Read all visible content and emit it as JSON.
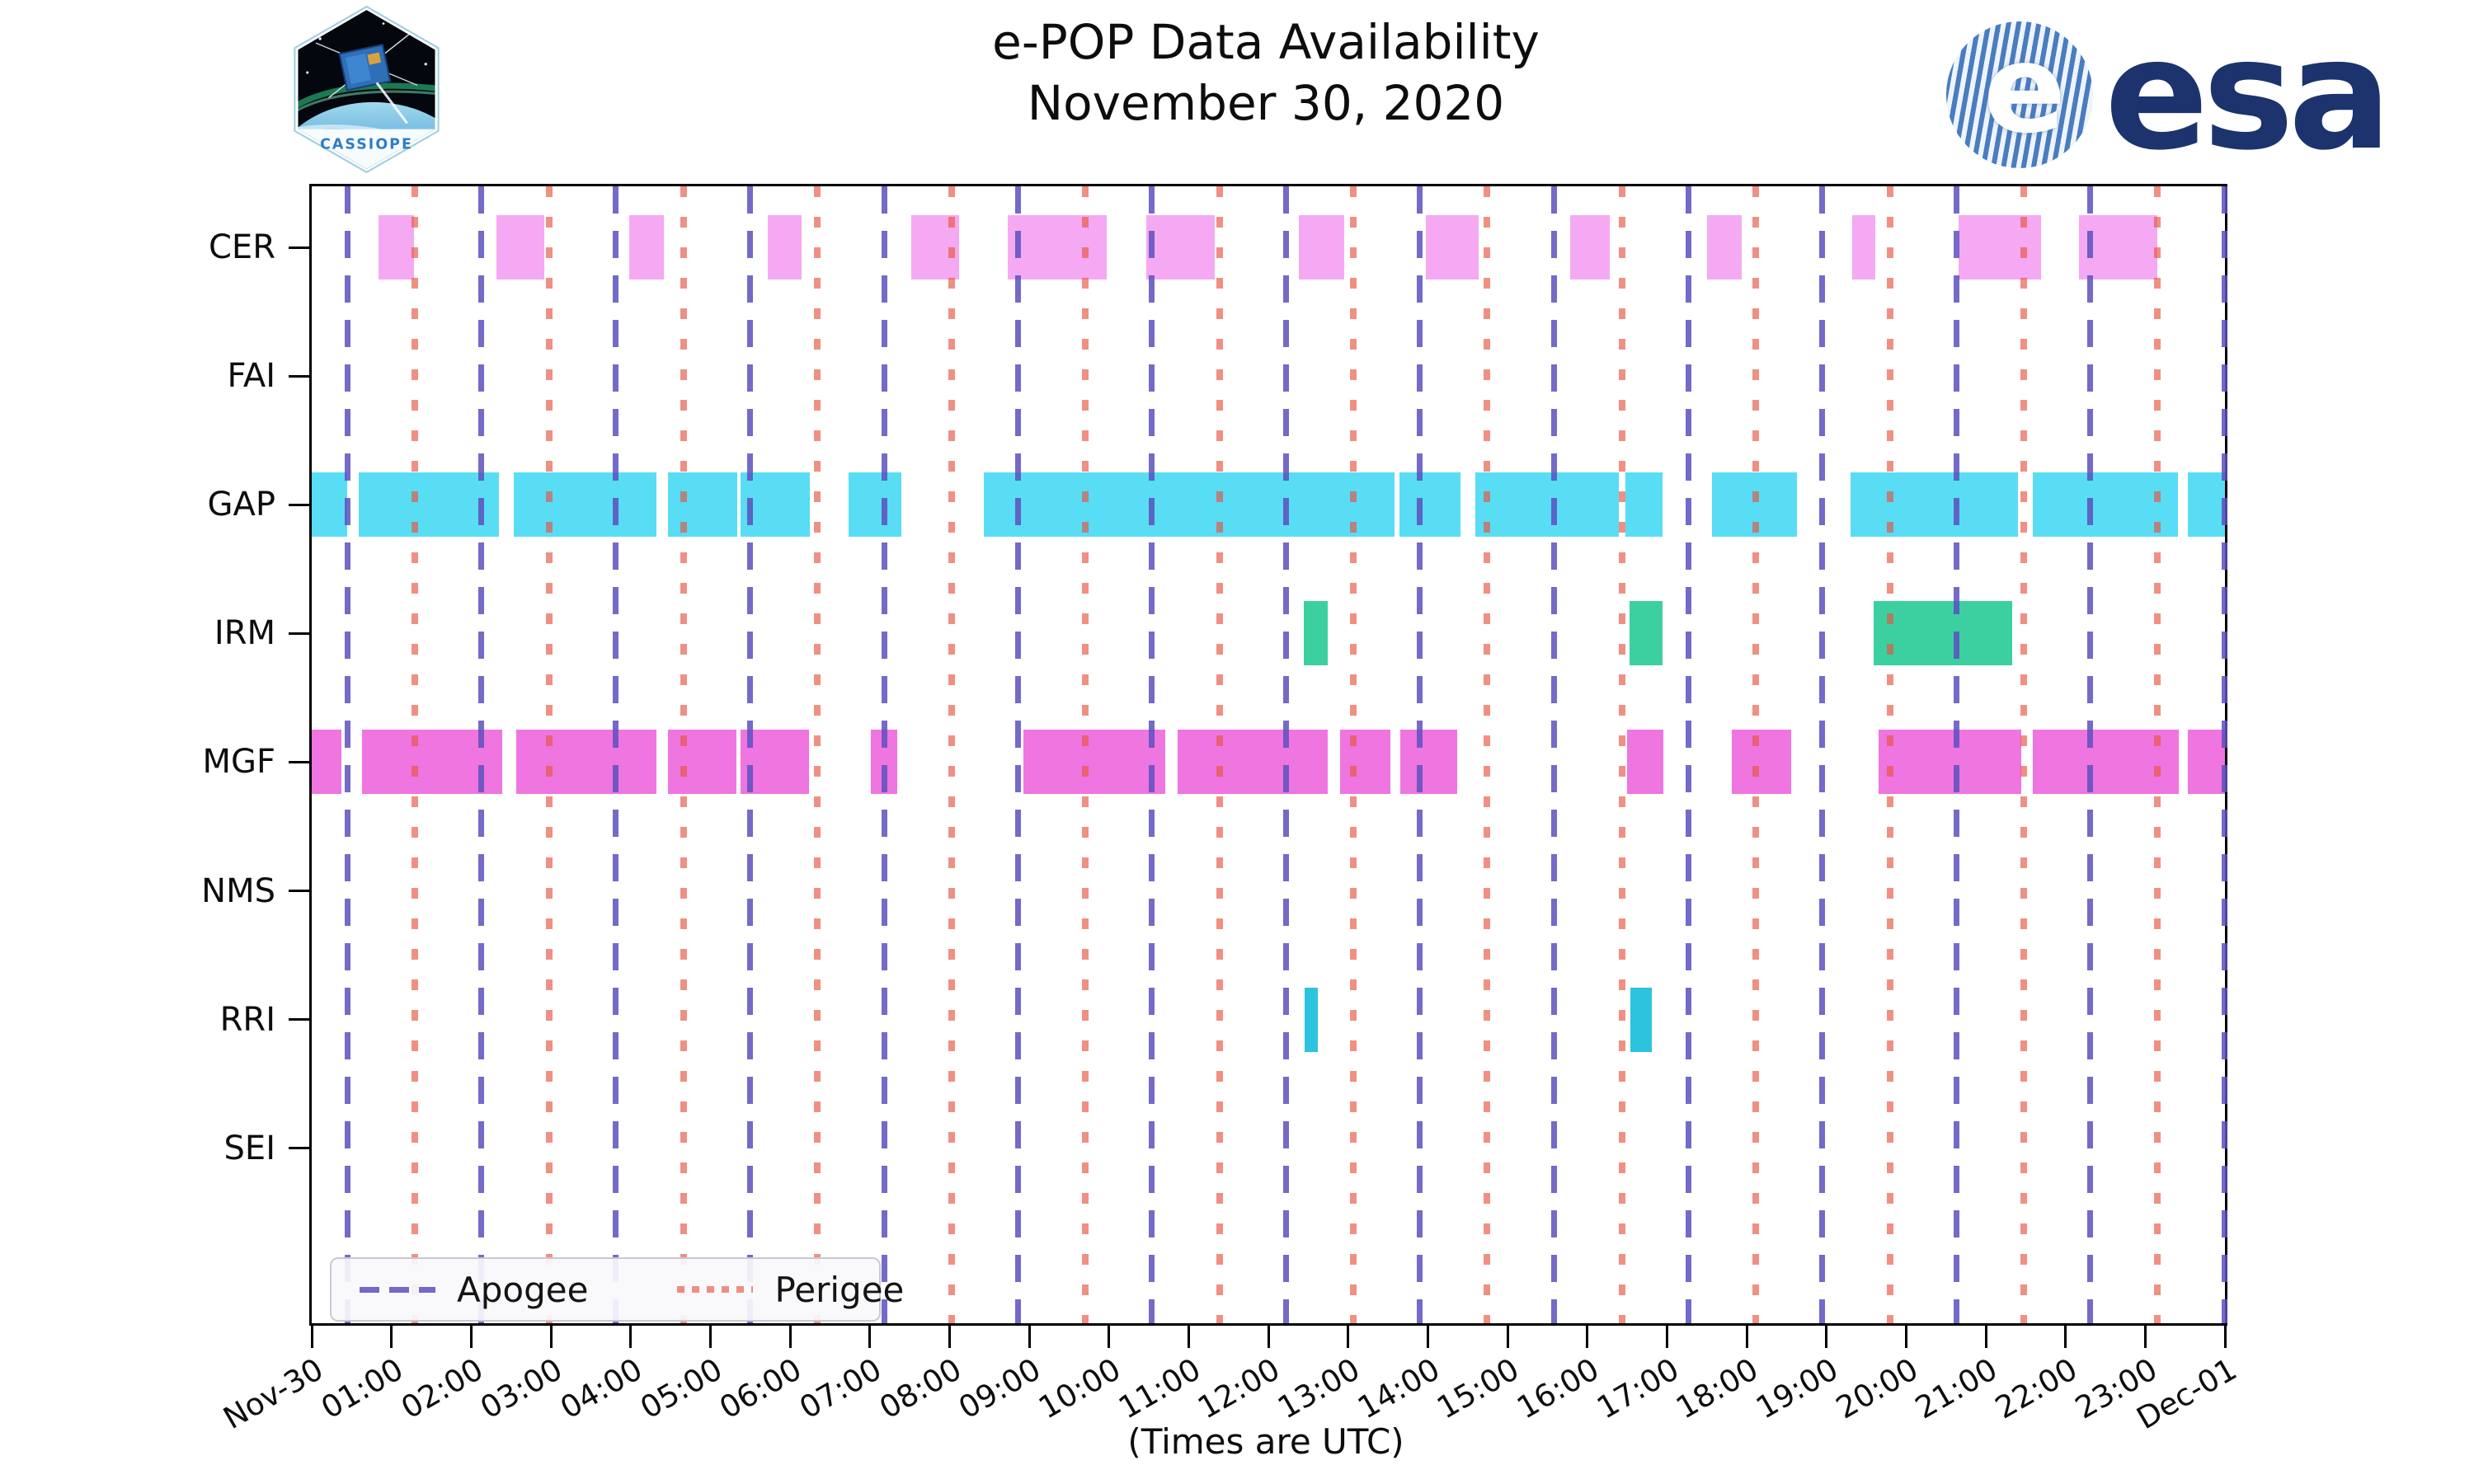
{
  "header": {
    "title": "e-POP Data Availability",
    "subtitle": "November 30, 2020",
    "esa_logo_text": "esa",
    "cassiope_logo_text": "CASSIOPE"
  },
  "chart_data": {
    "type": "bar",
    "subtype": "horizontal-broken-bar-availability-timeline",
    "title": "e-POP Data Availability",
    "subtitle": "November 30, 2020",
    "xlabel": "(Times are UTC)",
    "grid": false,
    "x_axis": {
      "unit": "hours UTC",
      "min": 0,
      "max": 24,
      "tick_hours": [
        0,
        1,
        2,
        3,
        4,
        5,
        6,
        7,
        8,
        9,
        10,
        11,
        12,
        13,
        14,
        15,
        16,
        17,
        18,
        19,
        20,
        21,
        22,
        23,
        24
      ],
      "tick_labels": [
        "Nov-30",
        "01:00",
        "02:00",
        "03:00",
        "04:00",
        "05:00",
        "06:00",
        "07:00",
        "08:00",
        "09:00",
        "10:00",
        "11:00",
        "12:00",
        "13:00",
        "14:00",
        "15:00",
        "16:00",
        "17:00",
        "18:00",
        "19:00",
        "20:00",
        "21:00",
        "22:00",
        "23:00",
        "Dec-01"
      ]
    },
    "rows": [
      {
        "label": "CER",
        "color": "#F5A9F2",
        "intervals": [
          [
            0.84,
            1.28
          ],
          [
            2.32,
            2.92
          ],
          [
            3.98,
            4.42
          ],
          [
            5.72,
            6.15
          ],
          [
            7.52,
            8.12
          ],
          [
            8.73,
            9.97
          ],
          [
            10.47,
            11.33
          ],
          [
            12.38,
            12.95
          ],
          [
            13.98,
            14.64
          ],
          [
            15.79,
            16.28
          ],
          [
            17.5,
            17.94
          ],
          [
            19.32,
            19.61
          ],
          [
            20.66,
            21.69
          ],
          [
            22.17,
            23.15
          ]
        ]
      },
      {
        "label": "FAI",
        "color": null,
        "intervals": []
      },
      {
        "label": "GAP",
        "color": "#58DDF5",
        "intervals": [
          [
            0,
            0.44
          ],
          [
            0.59,
            2.35
          ],
          [
            2.53,
            4.32
          ],
          [
            4.47,
            5.34
          ],
          [
            5.38,
            6.25
          ],
          [
            6.73,
            7.4
          ],
          [
            8.43,
            13.58
          ],
          [
            13.64,
            14.41
          ],
          [
            14.6,
            16.4
          ],
          [
            16.48,
            16.94
          ],
          [
            17.57,
            18.63
          ],
          [
            19.3,
            21.4
          ],
          [
            21.59,
            23.41
          ],
          [
            23.53,
            24
          ]
        ]
      },
      {
        "label": "IRM",
        "color": "#3CD0A1",
        "intervals": [
          [
            12.44,
            12.75
          ],
          [
            16.53,
            16.94
          ],
          [
            19.59,
            21.33
          ]
        ]
      },
      {
        "label": "MGF",
        "color": "#EF75E0",
        "intervals": [
          [
            0,
            0.37
          ],
          [
            0.63,
            2.39
          ],
          [
            2.57,
            4.32
          ],
          [
            4.47,
            5.33
          ],
          [
            5.38,
            6.24
          ],
          [
            7.01,
            7.35
          ],
          [
            8.93,
            10.71
          ],
          [
            10.86,
            12.74
          ],
          [
            12.9,
            13.53
          ],
          [
            13.65,
            14.37
          ],
          [
            16.5,
            16.95
          ],
          [
            17.81,
            18.56
          ],
          [
            19.65,
            21.44
          ],
          [
            21.59,
            23.42
          ],
          [
            23.53,
            24
          ]
        ]
      },
      {
        "label": "NMS",
        "color": null,
        "intervals": []
      },
      {
        "label": "RRI",
        "color": "#2CC3DF",
        "intervals": [
          [
            12.46,
            12.62
          ],
          [
            16.54,
            16.81
          ]
        ]
      },
      {
        "label": "SEI",
        "color": null,
        "intervals": []
      }
    ],
    "event_lines": [
      {
        "label": "Apogee",
        "style": "dashed",
        "color": "#5C50BE",
        "opacity": 0.85,
        "times": [
          0.45,
          2.13,
          3.81,
          5.5,
          7.18,
          8.86,
          10.54,
          12.22,
          13.9,
          15.58,
          17.27,
          18.95,
          20.63,
          22.31,
          23.99
        ]
      },
      {
        "label": "Perigee",
        "style": "dotted",
        "color": "#E8543F",
        "opacity": 0.65,
        "times": [
          1.29,
          2.97,
          4.66,
          6.34,
          8.02,
          9.7,
          11.38,
          13.06,
          14.74,
          16.43,
          18.11,
          19.79,
          21.47,
          23.15
        ]
      }
    ],
    "legend": {
      "position": "lower left",
      "items": [
        "Apogee",
        "Perigee"
      ]
    }
  }
}
